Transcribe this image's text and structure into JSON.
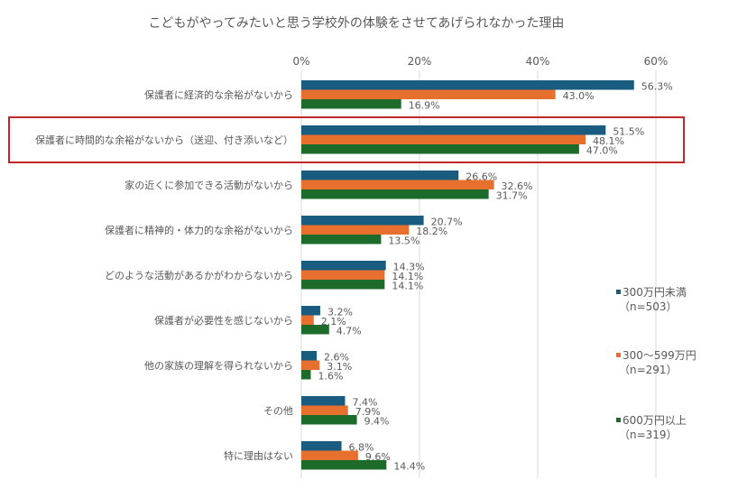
{
  "chart_data": {
    "type": "bar",
    "orientation": "horizontal",
    "title": "こどもがやってみたいと思う学校外の体験をさせてあげられなかった理由",
    "xlabel": "",
    "ylabel": "",
    "xlim": [
      0,
      60
    ],
    "x_ticks": [
      0,
      20,
      40,
      60
    ],
    "x_tick_labels": [
      "0%",
      "20%",
      "40%",
      "60%"
    ],
    "grid": true,
    "legend_position": "right",
    "categories": [
      "保護者に経済的な余裕がないから",
      "保護者に時間的な余裕がないから（送迎、付き添いなど）",
      "家の近くに参加できる活動がないから",
      "保護者に精神的・体力的な余裕がないから",
      "どのような活動があるかがわからないから",
      "保護者が必要性を感じないから",
      "他の家族の理解を得られないから",
      "その他",
      "特に理由はない"
    ],
    "highlighted_category_index": 1,
    "series": [
      {
        "name": "300万円未満",
        "n_label": "（n=503）",
        "color": "#1a5c7f",
        "values": [
          56.3,
          51.5,
          26.6,
          20.7,
          14.3,
          3.2,
          2.6,
          7.4,
          6.8
        ],
        "labels": [
          "56.3%",
          "51.5%",
          "26.6%",
          "20.7%",
          "14.3%",
          "3.2%",
          "2.6%",
          "7.4%",
          "6.8%"
        ]
      },
      {
        "name": "300～599万円",
        "n_label": "（n=291）",
        "color": "#e8702f",
        "values": [
          43.0,
          48.1,
          32.6,
          18.2,
          14.1,
          2.1,
          3.1,
          7.9,
          9.6
        ],
        "labels": [
          "43.0%",
          "48.1%",
          "32.6%",
          "18.2%",
          "14.1%",
          "2.1%",
          "3.1%",
          "7.9%",
          "9.6%"
        ]
      },
      {
        "name": "600万円以上",
        "n_label": "（n=319）",
        "color": "#1d6b2b",
        "values": [
          16.9,
          47.0,
          31.7,
          13.5,
          14.1,
          4.7,
          1.6,
          9.4,
          14.4
        ],
        "labels": [
          "16.9%",
          "47.0%",
          "31.7%",
          "13.5%",
          "14.1%",
          "4.7%",
          "1.6%",
          "9.4%",
          "14.4%"
        ]
      }
    ],
    "highlight_color": "#c0282d",
    "grid_color": "#d9d9d9"
  }
}
